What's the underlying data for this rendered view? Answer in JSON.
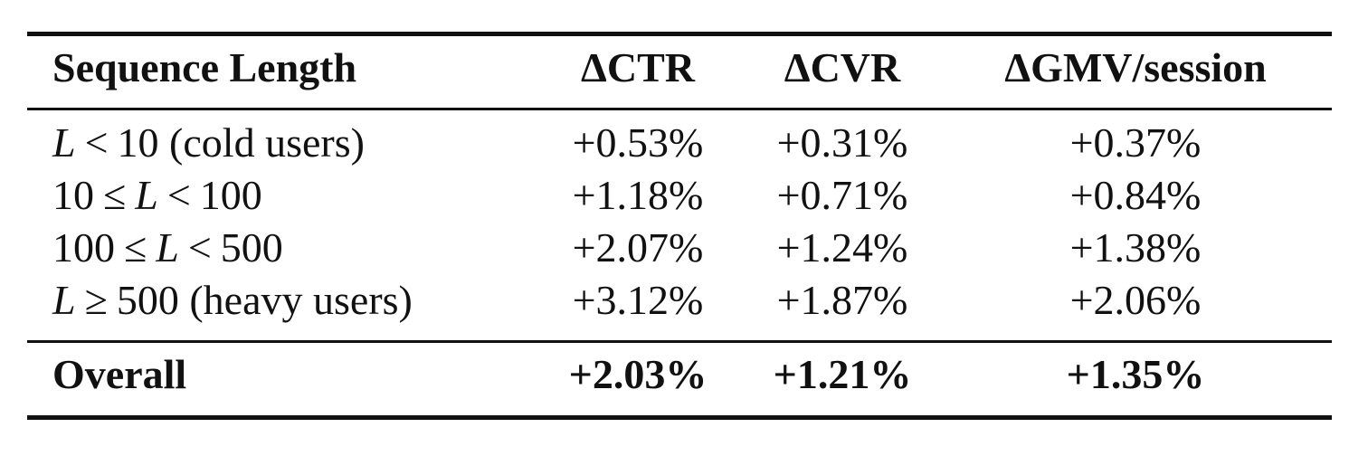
{
  "table": {
    "headers": [
      "Sequence Length",
      "ΔCTR",
      "ΔCVR",
      "ΔGMV/session"
    ],
    "rows": [
      {
        "label": {
          "var": "L",
          "op": "<",
          "num": "10",
          "note": "(cold users)"
        },
        "ctr": "+0.53%",
        "cvr": "+0.31%",
        "gmv": "+0.37%"
      },
      {
        "label": {
          "lo": "10",
          "op1": "≤",
          "var": "L",
          "op2": "<",
          "hi": "100"
        },
        "ctr": "+1.18%",
        "cvr": "+0.71%",
        "gmv": "+0.84%"
      },
      {
        "label": {
          "lo": "100",
          "op1": "≤",
          "var": "L",
          "op2": "<",
          "hi": "500"
        },
        "ctr": "+2.07%",
        "cvr": "+1.24%",
        "gmv": "+1.38%"
      },
      {
        "label": {
          "var": "L",
          "op": "≥",
          "num": "500",
          "note": "(heavy users)"
        },
        "ctr": "+3.12%",
        "cvr": "+1.87%",
        "gmv": "+2.06%"
      }
    ],
    "total": {
      "label": "Overall",
      "ctr": "+2.03%",
      "cvr": "+1.21%",
      "gmv": "+1.35%"
    }
  }
}
